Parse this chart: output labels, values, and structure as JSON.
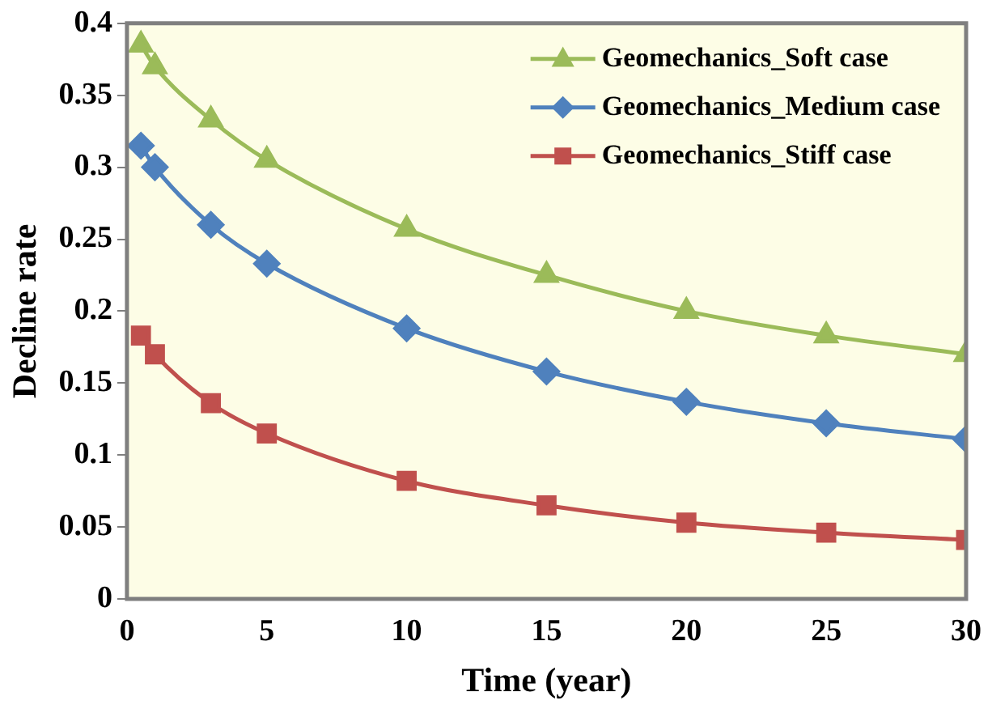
{
  "chart_data": {
    "type": "line",
    "xlabel": "Time (year)",
    "ylabel": "Decline rate",
    "x": [
      0.5,
      1,
      3,
      5,
      10,
      15,
      20,
      25,
      30
    ],
    "xlim": [
      0,
      30
    ],
    "xticks": [
      0,
      5,
      10,
      15,
      20,
      25,
      30
    ],
    "ylim": [
      0,
      0.4
    ],
    "yticks": [
      0,
      0.05,
      0.1,
      0.15,
      0.2,
      0.25,
      0.3,
      0.35,
      0.4
    ],
    "grid": false,
    "legend": "top right",
    "series": [
      {
        "name": "Geomechanics_Soft case",
        "color": "#9bbb59",
        "marker": "triangle",
        "values": [
          0.385,
          0.37,
          0.333,
          0.305,
          0.257,
          0.225,
          0.2,
          0.183,
          0.17
        ]
      },
      {
        "name": "Geomechanics_Medium case",
        "color": "#4f81bd",
        "marker": "diamond",
        "values": [
          0.315,
          0.3,
          0.26,
          0.233,
          0.188,
          0.158,
          0.137,
          0.122,
          0.111
        ]
      },
      {
        "name": "Geomechanics_Stiff case",
        "color": "#c0504d",
        "marker": "square",
        "values": [
          0.183,
          0.17,
          0.136,
          0.115,
          0.082,
          0.065,
          0.053,
          0.046,
          0.041
        ]
      }
    ]
  }
}
